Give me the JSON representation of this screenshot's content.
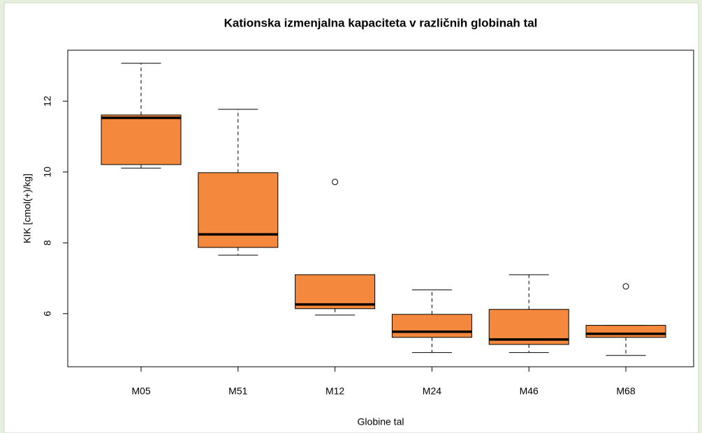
{
  "chart_data": {
    "type": "boxplot",
    "title": "Kationska izmenjalna kapaciteta  v  različnih globinah tal",
    "xlabel": "Globine tal",
    "ylabel": "KIK [cmol(+)/kg]",
    "categories": [
      "M05",
      "M51",
      "M12",
      "M24",
      "M46",
      "M68"
    ],
    "color": "#f4883c",
    "boxes": [
      {
        "min": 10.11,
        "q1": 10.21,
        "median": 11.53,
        "q3": 11.61,
        "max": 13.07,
        "outliers": []
      },
      {
        "min": 7.65,
        "q1": 7.87,
        "median": 8.24,
        "q3": 9.98,
        "max": 11.77,
        "outliers": []
      },
      {
        "min": 5.96,
        "q1": 6.14,
        "median": 6.26,
        "q3": 7.1,
        "max": 7.1,
        "outliers": [
          9.72
        ]
      },
      {
        "min": 4.9,
        "q1": 5.33,
        "median": 5.49,
        "q3": 5.98,
        "max": 6.67,
        "outliers": []
      },
      {
        "min": 4.9,
        "q1": 5.13,
        "median": 5.27,
        "q3": 6.12,
        "max": 7.1,
        "outliers": []
      },
      {
        "min": 4.82,
        "q1": 5.33,
        "median": 5.43,
        "q3": 5.67,
        "max": 5.67,
        "outliers": [
          6.77
        ]
      }
    ],
    "ylim": [
      4.5,
      13.44
    ],
    "yticks": [
      6,
      8,
      10,
      12
    ]
  }
}
